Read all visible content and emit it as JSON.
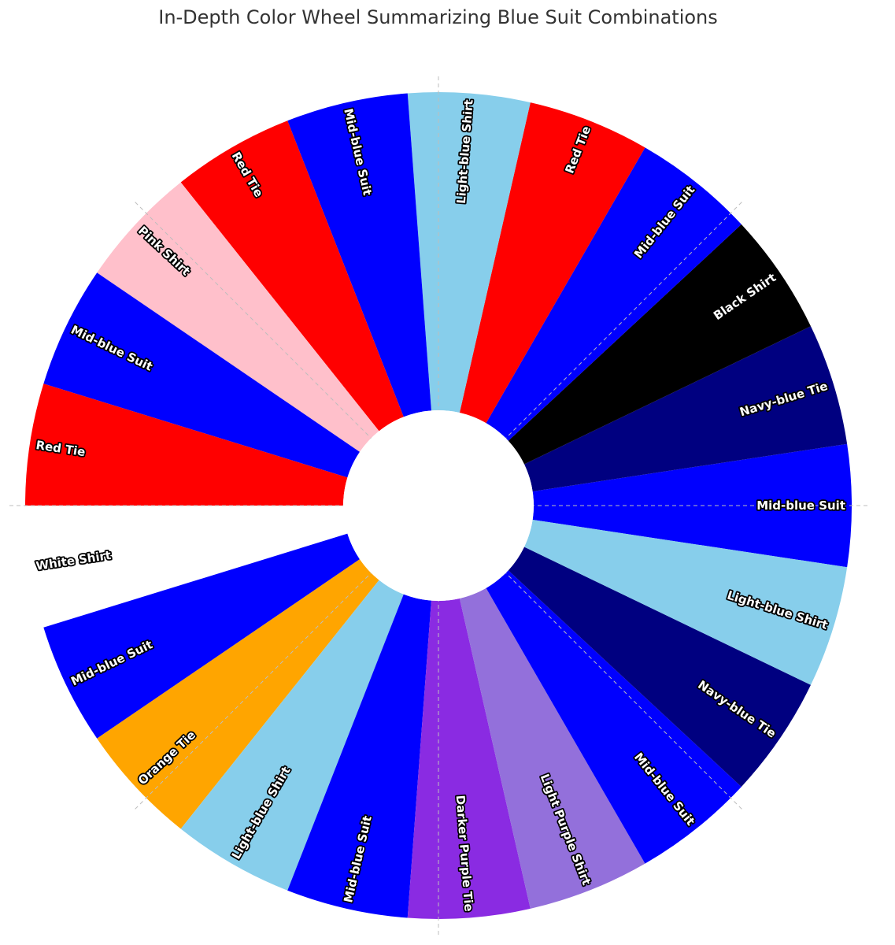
{
  "chart_data": {
    "type": "polar-bar",
    "title": "In-Depth Color Wheel Summarizing Blue Suit Combinations",
    "items": [
      {
        "label": "Mid-blue Suit",
        "color": "#0000FF",
        "value": 1.0
      },
      {
        "label": "Navy-blue Tie",
        "color": "#000080",
        "value": 1.0
      },
      {
        "label": "Black Shirt",
        "color": "#000000",
        "value": 1.0
      },
      {
        "label": "Mid-blue Suit",
        "color": "#0000FF",
        "value": 1.0
      },
      {
        "label": "Red Tie",
        "color": "#FF0000",
        "value": 1.0
      },
      {
        "label": "Light-blue Shirt",
        "color": "#87CEEB",
        "value": 1.0
      },
      {
        "label": "Mid-blue Suit",
        "color": "#0000FF",
        "value": 1.0
      },
      {
        "label": "Red Tie",
        "color": "#FF0000",
        "value": 1.0
      },
      {
        "label": "Pink Shirt",
        "color": "#FFC0CB",
        "value": 1.0
      },
      {
        "label": "Mid-blue Suit",
        "color": "#0000FF",
        "value": 1.0
      },
      {
        "label": "Red Tie",
        "color": "#FF0000",
        "value": 1.0
      },
      {
        "label": "White Shirt",
        "color": "#FFFFFF",
        "value": 1.0
      },
      {
        "label": "Mid-blue Suit",
        "color": "#0000FF",
        "value": 1.0
      },
      {
        "label": "Orange Tie",
        "color": "#FFA500",
        "value": 1.0
      },
      {
        "label": "Light-blue Shirt",
        "color": "#87CEEB",
        "value": 1.0
      },
      {
        "label": "Mid-blue Suit",
        "color": "#0000FF",
        "value": 1.0
      },
      {
        "label": "Darker Purple Tie",
        "color": "#8A2BE2",
        "value": 1.0
      },
      {
        "label": "Light Purple Shirt",
        "color": "#9370DB",
        "value": 1.0
      },
      {
        "label": "Mid-blue Suit",
        "color": "#0000FF",
        "value": 1.0
      },
      {
        "label": "Navy-blue Tie",
        "color": "#000080",
        "value": 1.0
      },
      {
        "label": "Light-blue Shirt",
        "color": "#87CEEB",
        "value": 1.0
      }
    ],
    "grid": true,
    "legend": "none"
  }
}
